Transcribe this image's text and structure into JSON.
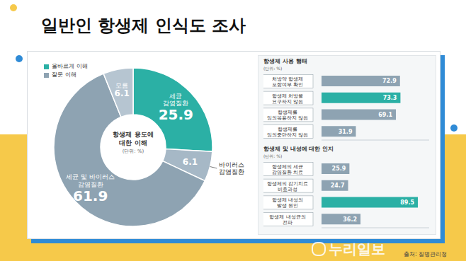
{
  "title": "일반인 항생제 인식도 조사",
  "source": "출처: 질병관리청",
  "watermark": "누리일보",
  "chart_data": [
    {
      "type": "pie",
      "title": "항생제 용도에 대한 이해",
      "subtitle": "(단위: %)",
      "categories": [
        "세균 감염질환",
        "바이러스 감염질환",
        "세균 및 바이러스 감염질환",
        "모름"
      ],
      "values": [
        25.9,
        6.1,
        61.9,
        6.1
      ],
      "colors": [
        "#2bb0a5",
        "#a6b8c6",
        "#8ea3b2",
        "#b6c5d1"
      ],
      "data_labels": true,
      "legend": "upper left",
      "legend_entries": [
        {
          "name": "올바르게 이해",
          "color": "#2bb0a5"
        },
        {
          "name": "잘못 이해",
          "color": "#8ea3b2"
        }
      ]
    },
    {
      "type": "bar",
      "orientation": "horizontal",
      "title": "항생제 사용 행태",
      "subtitle": "(단위: %)",
      "categories": [
        "처방약 항생제 포함여부 확인",
        "항생제 처방을 요구하지 않음",
        "항생제를 임의복용하지 않음",
        "항생제를 임의중단하지 않음"
      ],
      "values": [
        72.9,
        73.3,
        69.1,
        31.9
      ],
      "colors": [
        "#8ea3b2",
        "#2bb0a5",
        "#8ea3b2",
        "#8ea3b2"
      ],
      "xlim": [
        0,
        100
      ],
      "data_labels": true,
      "tick_labels": "y",
      "grid": false
    },
    {
      "type": "bar",
      "orientation": "horizontal",
      "title": "항생제 및 내성에 대한 인지",
      "subtitle": "(단위: %)",
      "categories": [
        "항생제의 세균 감염질환 치료",
        "항생제의 감기치료 비효과성",
        "항생제 내성의 발생 원인",
        "항생제 내성균의 전파"
      ],
      "values": [
        25.9,
        24.7,
        89.5,
        36.2
      ],
      "colors": [
        "#8ea3b2",
        "#8ea3b2",
        "#2bb0a5",
        "#8ea3b2"
      ],
      "xlim": [
        0,
        100
      ],
      "data_labels": true,
      "tick_labels": "y",
      "grid": false
    }
  ]
}
